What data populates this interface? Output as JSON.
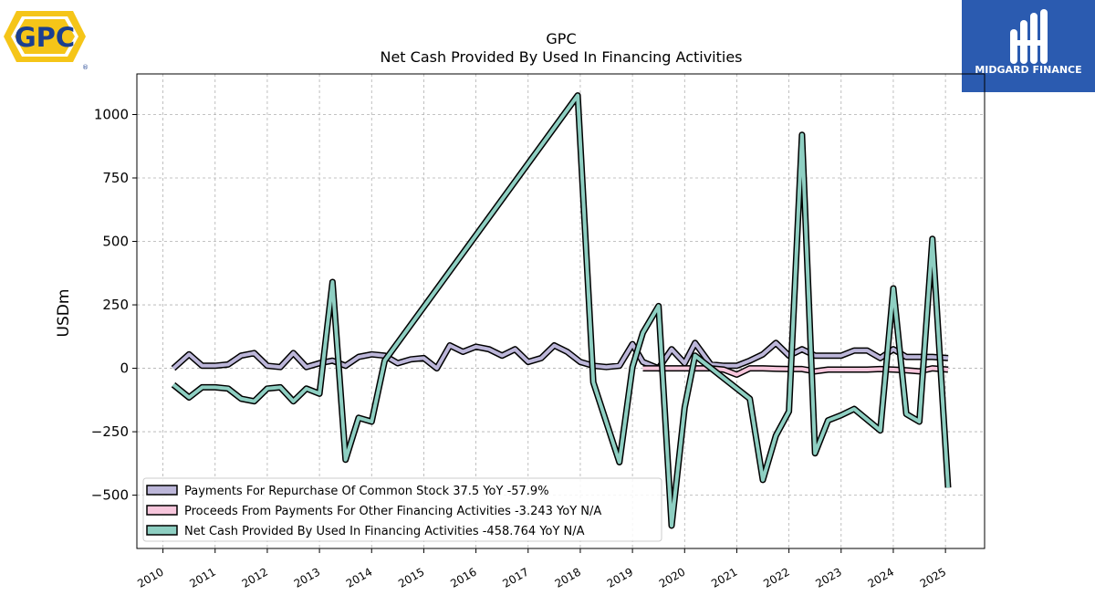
{
  "brand": {
    "gpc_logo_text": "GPC",
    "midgard_text": "MIDGARD FINANCE",
    "midgard_bg": "#2b5bb0"
  },
  "chart_data": {
    "type": "line",
    "title": "GPC",
    "subtitle": "Net Cash Provided By Used In Financing Activities",
    "ylabel": "USDm",
    "xlabel": "",
    "xlim": [
      2009.5,
      2025.75
    ],
    "ylim": [
      -710,
      1160
    ],
    "x_ticks": [
      2010,
      2011,
      2012,
      2013,
      2014,
      2015,
      2016,
      2017,
      2018,
      2019,
      2020,
      2021,
      2022,
      2023,
      2024,
      2025
    ],
    "y_ticks": [
      1000,
      750,
      500,
      250,
      0,
      -250,
      -500
    ],
    "y_tick_labels": [
      "1000",
      "750",
      "500",
      "250",
      "0",
      "−250",
      "−500"
    ],
    "grid": true,
    "legend_position": "lower-left",
    "series": [
      {
        "name": "Payments For Repurchase Of Common Stock",
        "legend_label": "Payments For Repurchase Of Common Stock  37.5 YoY -57.9%",
        "color": "#bcb6d9",
        "x": [
          2010.2,
          2010.5,
          2010.75,
          2011.0,
          2011.25,
          2011.5,
          2011.75,
          2012.0,
          2012.25,
          2012.5,
          2012.75,
          2013.0,
          2013.25,
          2013.5,
          2013.75,
          2014.0,
          2014.25,
          2014.5,
          2014.75,
          2015.0,
          2015.25,
          2015.5,
          2015.75,
          2016.0,
          2016.25,
          2016.5,
          2016.75,
          2017.0,
          2017.25,
          2017.5,
          2017.75,
          2018.0,
          2018.25,
          2018.5,
          2018.75,
          2019.0,
          2019.2,
          2019.5,
          2019.75,
          2020.0,
          2020.2,
          2020.5,
          2020.75,
          2021.0,
          2021.25,
          2021.5,
          2021.75,
          2022.0,
          2022.25,
          2022.5,
          2022.75,
          2023.0,
          2023.25,
          2023.5,
          2023.75,
          2024.0,
          2024.25,
          2024.5,
          2024.75,
          2025.05
        ],
        "values": [
          0,
          55,
          10,
          10,
          15,
          50,
          60,
          10,
          5,
          60,
          5,
          20,
          30,
          10,
          45,
          55,
          50,
          20,
          35,
          40,
          0,
          90,
          65,
          85,
          75,
          50,
          75,
          25,
          40,
          90,
          65,
          25,
          10,
          5,
          10,
          95,
          25,
          0,
          75,
          20,
          100,
          15,
          10,
          10,
          30,
          55,
          100,
          50,
          75,
          50,
          50,
          50,
          70,
          70,
          40,
          75,
          45,
          45,
          45,
          40
        ]
      },
      {
        "name": "Proceeds From Payments For Other Financing Activities",
        "legend_label": "Proceeds From Payments For Other Financing Activities  -3.243 YoY N/A",
        "color": "#f7c6dc",
        "x": [
          2019.2,
          2019.5,
          2019.75,
          2020.0,
          2020.5,
          2020.75,
          2021.0,
          2021.25,
          2021.5,
          2021.75,
          2022.0,
          2022.25,
          2022.5,
          2022.75,
          2023.0,
          2023.25,
          2023.5,
          2023.75,
          2024.0,
          2024.25,
          2024.5,
          2024.75,
          2025.05
        ],
        "values": [
          0,
          0,
          0,
          0,
          0,
          -5,
          -25,
          0,
          0,
          -2,
          -3,
          -3,
          -12,
          -5,
          -5,
          -5,
          -5,
          -3,
          -5,
          -8,
          -12,
          0,
          -5
        ]
      },
      {
        "name": "Net Cash Provided By Used In Financing Activities",
        "legend_label": "Net Cash Provided By Used In Financing Activities  -458.764 YoY N/A",
        "color": "#8ecfc2",
        "x": [
          2010.2,
          2010.5,
          2010.75,
          2011.0,
          2011.25,
          2011.5,
          2011.75,
          2012.0,
          2012.25,
          2012.5,
          2012.75,
          2013.0,
          2013.25,
          2013.5,
          2013.75,
          2014.0,
          2014.25,
          2017.95,
          2018.25,
          2018.75,
          2019.0,
          2019.2,
          2019.5,
          2019.75,
          2020.0,
          2020.2,
          2021.25,
          2021.5,
          2021.75,
          2022.0,
          2022.25,
          2022.5,
          2022.75,
          2023.0,
          2023.25,
          2023.75,
          2024.0,
          2024.25,
          2024.5,
          2024.75,
          2025.05
        ],
        "values": [
          -65,
          -115,
          -75,
          -75,
          -80,
          -120,
          -130,
          -80,
          -75,
          -130,
          -80,
          -100,
          340,
          -360,
          -195,
          -210,
          30,
          1075,
          -55,
          -370,
          5,
          140,
          245,
          -620,
          -155,
          50,
          -120,
          -440,
          -265,
          -170,
          920,
          -335,
          -205,
          -185,
          -160,
          -245,
          315,
          -180,
          -210,
          510,
          -470
        ]
      }
    ]
  }
}
